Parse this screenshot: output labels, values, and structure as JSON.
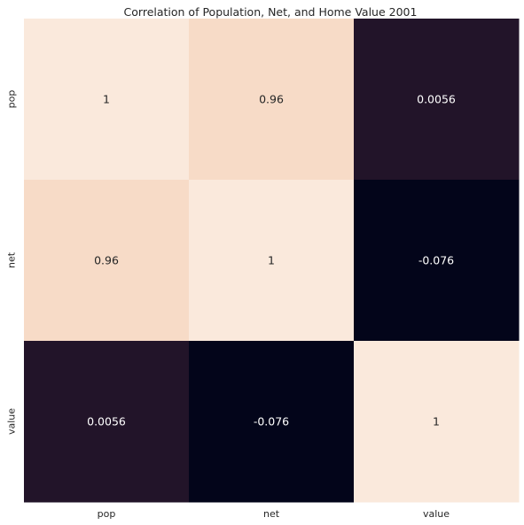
{
  "chart_data": {
    "type": "heatmap",
    "title": "Correlation of Population, Net, and Home Value 2001",
    "x_categories": [
      "pop",
      "net",
      "value"
    ],
    "y_categories": [
      "pop",
      "net",
      "value"
    ],
    "values": [
      [
        1,
        0.96,
        0.0056
      ],
      [
        0.96,
        1,
        -0.076
      ],
      [
        0.0056,
        -0.076,
        1
      ]
    ],
    "cell_labels": [
      [
        "1",
        "0.96",
        "0.0056"
      ],
      [
        "0.96",
        "1",
        "-0.076"
      ],
      [
        "0.0056",
        "-0.076",
        "1"
      ]
    ],
    "colorbar": false,
    "colors": {
      "high": "#fae9dc",
      "mid_high": "#f7dbc7",
      "low": "#221429",
      "lowest": "#03051a",
      "label_dark": "#262626",
      "label_light": "#ffffff"
    }
  }
}
